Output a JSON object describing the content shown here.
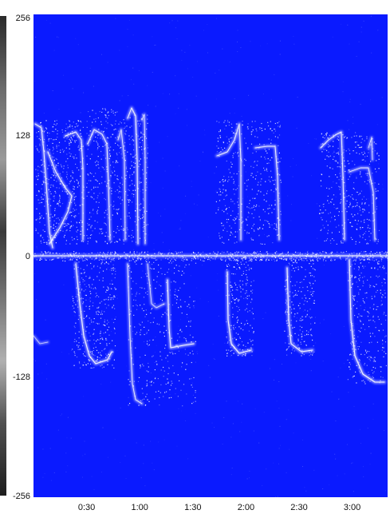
{
  "chart_data": {
    "type": "heatmap",
    "title": "",
    "xlabel": "",
    "ylabel": "",
    "x_ticks": [
      {
        "value": 30,
        "label": "0:30"
      },
      {
        "value": 60,
        "label": "1:00"
      },
      {
        "value": 90,
        "label": "1:30"
      },
      {
        "value": 120,
        "label": "2:00"
      },
      {
        "value": 150,
        "label": "2:30"
      },
      {
        "value": 180,
        "label": "3:00"
      }
    ],
    "y_ticks": [
      {
        "value": 256,
        "label": "256"
      },
      {
        "value": 128,
        "label": "128"
      },
      {
        "value": 0,
        "label": "0"
      },
      {
        "value": -128,
        "label": "-128"
      },
      {
        "value": -256,
        "label": "-256"
      }
    ],
    "xlim": [
      0,
      200
    ],
    "ylim": [
      -256,
      256
    ],
    "colors": {
      "background": "#0a1aff",
      "signal": "#ffffff"
    },
    "grid": false,
    "legend": "none"
  }
}
